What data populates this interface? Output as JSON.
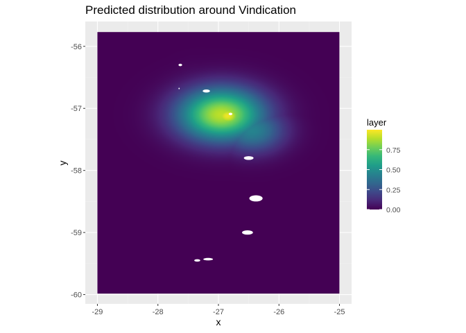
{
  "chart_data": {
    "type": "heatmap",
    "title": "Predicted distribution around Vindication",
    "xlabel": "x",
    "ylabel": "y",
    "xlim": [
      -29.2,
      -24.8
    ],
    "ylim": [
      -60.15,
      -55.6
    ],
    "x_ticks": [
      -29,
      -28,
      -27,
      -26,
      -25
    ],
    "y_ticks": [
      -56,
      -57,
      -58,
      -59,
      -60
    ],
    "x_tick_labels": [
      "-29",
      "-28",
      "-27",
      "-26",
      "-25"
    ],
    "y_tick_labels": [
      "-56",
      "-57",
      "-58",
      "-59",
      "-60"
    ],
    "grid": true,
    "raster_extent": {
      "x": [
        -29.0,
        -25.0
      ],
      "y": [
        -59.99,
        -55.77
      ]
    },
    "hotspots": [
      {
        "x": -26.85,
        "y": -57.12,
        "value": 0.98,
        "sx": 0.22,
        "sy": 0.15
      },
      {
        "x": -26.95,
        "y": -57.1,
        "value": 0.9,
        "sx": 0.5,
        "sy": 0.3
      },
      {
        "x": -26.45,
        "y": -57.35,
        "value": 0.45,
        "sx": 0.38,
        "sy": 0.25
      },
      {
        "x": -27.3,
        "y": -57.0,
        "value": 0.3,
        "sx": 0.32,
        "sy": 0.3
      }
    ],
    "background_value": 0.0,
    "land_masks": [
      {
        "name": "islet-1",
        "x": -27.2,
        "y": -56.72,
        "rx": 0.06,
        "ry": 0.025
      },
      {
        "name": "islet-2",
        "x": -27.63,
        "y": -56.3,
        "rx": 0.03,
        "ry": 0.02
      },
      {
        "name": "islet-3",
        "x": -27.65,
        "y": -56.68,
        "rx": 0.01,
        "ry": 0.012
      },
      {
        "name": "islet-4",
        "x": -26.8,
        "y": -57.09,
        "rx": 0.03,
        "ry": 0.02
      },
      {
        "name": "islet-5",
        "x": -26.5,
        "y": -57.8,
        "rx": 0.08,
        "ry": 0.03
      },
      {
        "name": "islet-6",
        "x": -26.38,
        "y": -58.45,
        "rx": 0.11,
        "ry": 0.05
      },
      {
        "name": "islet-7",
        "x": -26.52,
        "y": -59.0,
        "rx": 0.09,
        "ry": 0.035
      },
      {
        "name": "islet-8",
        "x": -27.35,
        "y": -59.45,
        "rx": 0.05,
        "ry": 0.02
      },
      {
        "name": "islet-9",
        "x": -27.17,
        "y": -59.43,
        "rx": 0.08,
        "ry": 0.02
      }
    ],
    "legend": {
      "title": "layer",
      "position": "right",
      "range": [
        0,
        1
      ],
      "breaks": [
        0.75,
        0.5,
        0.25,
        0.0
      ],
      "labels": [
        "0.75",
        "0.50",
        "0.25",
        "0.00"
      ]
    },
    "colormap": "viridis",
    "colors": {
      "panel_background": "#ebebeb",
      "grid_major": "#ffffff",
      "grid_minor": "#f2f2f2",
      "viridis": [
        "#440154",
        "#482878",
        "#3e4989",
        "#31688e",
        "#26828e",
        "#1f9e89",
        "#35b779",
        "#6ece58",
        "#b5de2b",
        "#fde725"
      ]
    }
  }
}
